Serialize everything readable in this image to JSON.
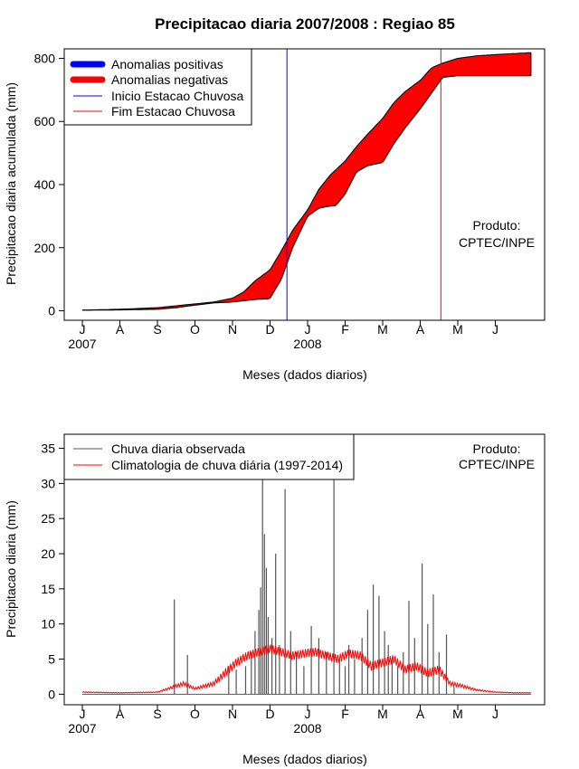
{
  "chart_data": [
    {
      "type": "area",
      "title": "Precipitacao diaria 2007/2008 : Regiao 85",
      "xlabel": "Meses (dados diarios)",
      "ylabel": "Precipitacao diaria acumulada (mm)",
      "ylim": [
        -30,
        830
      ],
      "yticks": [
        "0",
        "200",
        "400",
        "600",
        "800"
      ],
      "month_ticks": [
        "J",
        "A",
        "S",
        "O",
        "N",
        "D",
        "J",
        "F",
        "M",
        "A",
        "M",
        "J"
      ],
      "year_labels": [
        "2007",
        "2008"
      ],
      "legend": [
        {
          "label": "Anomalias positivas",
          "color": "#0000ff",
          "kind": "thick"
        },
        {
          "label": "Anomalias negativas",
          "color": "#ff0000",
          "kind": "thick"
        },
        {
          "label": "Inicio Estacao Chuvosa",
          "color": "#0000ff",
          "kind": "thin"
        },
        {
          "label": "Fim Estacao Chuvosa",
          "color": "#ff0000",
          "kind": "thin"
        }
      ],
      "annotation": [
        "Produto:",
        "CPTEC/INPE"
      ],
      "season_start_month": 5.45,
      "season_end_month": 9.55,
      "climatology_cumulative": {
        "month": [
          0,
          1,
          2,
          2.5,
          3,
          3.5,
          4,
          4.3,
          4.6,
          5,
          5.3,
          5.6,
          6,
          6.3,
          6.6,
          7,
          7.3,
          7.6,
          8,
          8.3,
          8.6,
          9,
          9.3,
          9.6,
          10,
          10.5,
          11,
          11.5,
          11.95
        ],
        "mm": [
          2,
          5,
          10,
          16,
          22,
          28,
          40,
          60,
          95,
          130,
          190,
          255,
          320,
          385,
          430,
          475,
          520,
          560,
          610,
          660,
          695,
          730,
          770,
          785,
          800,
          808,
          812,
          815,
          818
        ]
      },
      "observed_cumulative": {
        "month": [
          0,
          1,
          2,
          2.5,
          3,
          3.5,
          4,
          4.3,
          4.6,
          4.95,
          5,
          5.3,
          5.6,
          6,
          6.3,
          6.5,
          6.6,
          6.75,
          7,
          7.3,
          7.6,
          8,
          8.3,
          8.6,
          8.8,
          9,
          9.3,
          9.6,
          10,
          10.5,
          11,
          11.5,
          11.95
        ],
        "mm": [
          2,
          3,
          5,
          10,
          18,
          25,
          28,
          32,
          36,
          38,
          40,
          100,
          200,
          300,
          325,
          330,
          332,
          333,
          370,
          440,
          460,
          470,
          530,
          580,
          610,
          640,
          690,
          740,
          745,
          745,
          745,
          745,
          745
        ]
      }
    },
    {
      "type": "bar",
      "xlabel": "Meses (dados diarios)",
      "ylabel": "Precipitacao diaria (mm)",
      "ylim": [
        -1.5,
        37
      ],
      "yticks": [
        "0",
        "5",
        "10",
        "15",
        "20",
        "25",
        "30",
        "35"
      ],
      "month_ticks": [
        "J",
        "A",
        "S",
        "O",
        "N",
        "D",
        "J",
        "F",
        "M",
        "A",
        "M",
        "J"
      ],
      "year_labels": [
        "2007",
        "2008"
      ],
      "legend": [
        {
          "label": "Chuva diaria observada",
          "color": "#555555"
        },
        {
          "label": "Climatologia de chuva diária (1997-2014)",
          "color": "#ff0000"
        }
      ],
      "annotation": [
        "Produto:",
        "CPTEC/INPE"
      ],
      "observed_daily_peaks": {
        "month": [
          2.45,
          2.8,
          3.9,
          4.1,
          4.35,
          4.5,
          4.6,
          4.7,
          4.75,
          4.8,
          4.85,
          4.9,
          4.95,
          5.05,
          5.15,
          5.25,
          5.4,
          5.55,
          5.7,
          5.9,
          6.1,
          6.3,
          6.5,
          6.7,
          6.85,
          7.0,
          7.1,
          7.25,
          7.45,
          7.6,
          7.75,
          7.9,
          8.05,
          8.15,
          8.25,
          8.4,
          8.55,
          8.7,
          8.85,
          9.05,
          9.2,
          9.35,
          9.5,
          9.7,
          9.9
        ],
        "mm": [
          13.5,
          5.6,
          4.0,
          3.5,
          4.0,
          6.0,
          9.0,
          12.0,
          15.2,
          33.0,
          22.8,
          18.0,
          11.0,
          8.0,
          20.0,
          7.0,
          29.2,
          9.0,
          6.0,
          4.0,
          9.7,
          8.0,
          6.0,
          32.0,
          5.0,
          4.0,
          7.0,
          5.0,
          8.0,
          12.0,
          15.6,
          14.0,
          9.0,
          7.0,
          5.0,
          4.0,
          6.0,
          13.3,
          8.0,
          18.6,
          10.0,
          14.2,
          6.0,
          8.5,
          1.0
        ]
      },
      "climatology_daily": {
        "month": [
          0,
          1,
          2,
          2.7,
          3,
          3.5,
          3.8,
          4.1,
          4.4,
          4.7,
          5.0,
          5.3,
          5.6,
          5.9,
          6.2,
          6.5,
          6.8,
          7.1,
          7.4,
          7.7,
          8.0,
          8.3,
          8.6,
          8.9,
          9.2,
          9.5,
          9.8,
          10.1,
          10.5,
          11,
          11.5,
          11.95
        ],
        "mm": [
          0.3,
          0.2,
          0.3,
          1.5,
          0.8,
          1.5,
          3.0,
          4.5,
          5.5,
          6.0,
          6.5,
          6.0,
          5.5,
          5.8,
          6.0,
          5.5,
          5.0,
          5.8,
          5.5,
          4.0,
          4.5,
          5.0,
          3.5,
          4.0,
          3.0,
          3.5,
          1.5,
          1.2,
          0.6,
          0.3,
          0.2,
          0.2
        ]
      }
    }
  ]
}
